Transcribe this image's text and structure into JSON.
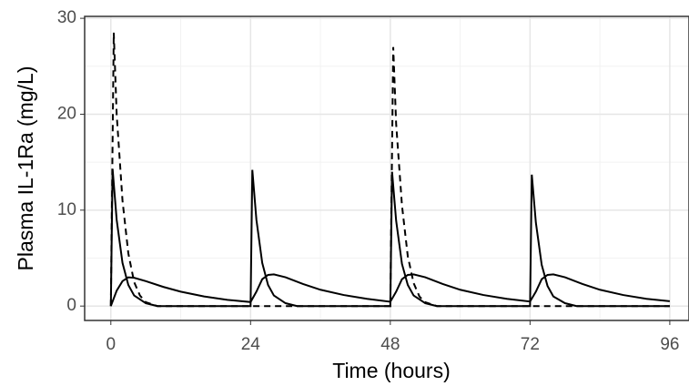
{
  "chart_data": {
    "type": "line",
    "xlabel": "Time (hours)",
    "ylabel": "Plasma IL-1Ra (mg/L)",
    "xlim": [
      -4.5,
      99.3
    ],
    "ylim": [
      -1.5,
      30.2
    ],
    "xticks": [
      0,
      24,
      48,
      72,
      96
    ],
    "yticks": [
      0,
      10,
      20,
      30
    ],
    "xminor": [
      12,
      36,
      60,
      84
    ],
    "yminor": [
      5,
      15,
      25
    ],
    "grid": true,
    "series": [
      {
        "color": "#000000",
        "dashed": false,
        "x": [
          0,
          0.3,
          1,
          2,
          3,
          4,
          6,
          8,
          24,
          24.3,
          25,
          26,
          27,
          28,
          30,
          32,
          48,
          48.3,
          49,
          50,
          51,
          52,
          54,
          56,
          72,
          72.3,
          73,
          74,
          75,
          76,
          78,
          80,
          96
        ],
        "values": [
          0,
          14.3,
          9,
          4.5,
          2.2,
          1.1,
          0.3,
          0,
          0,
          14.2,
          9,
          4.5,
          2.2,
          1.1,
          0.3,
          0,
          0,
          14,
          8.9,
          4.4,
          2.2,
          1.1,
          0.3,
          0,
          0,
          13.7,
          8.7,
          4.3,
          2.1,
          1.0,
          0.3,
          0,
          0
        ]
      },
      {
        "color": "#000000",
        "dashed": false,
        "x": [
          0,
          1,
          2,
          3,
          4,
          6,
          9,
          12,
          16,
          20,
          24,
          25,
          26,
          27,
          28,
          30,
          33,
          36,
          40,
          44,
          48,
          49,
          50,
          51,
          52,
          54,
          57,
          60,
          64,
          68,
          72,
          73,
          74,
          75,
          76,
          78,
          81,
          84,
          88,
          92,
          96
        ],
        "values": [
          0,
          1.6,
          2.6,
          3.0,
          2.95,
          2.6,
          2.0,
          1.5,
          1.0,
          0.65,
          0.42,
          1.5,
          2.8,
          3.25,
          3.3,
          3.0,
          2.3,
          1.7,
          1.15,
          0.75,
          0.45,
          1.5,
          2.8,
          3.25,
          3.3,
          3.0,
          2.3,
          1.7,
          1.15,
          0.75,
          0.47,
          1.5,
          2.8,
          3.25,
          3.3,
          3.0,
          2.3,
          1.7,
          1.15,
          0.75,
          0.5
        ]
      },
      {
        "color": "#000000",
        "dashed": true,
        "x": [
          0,
          0.5,
          1,
          2,
          3,
          4,
          5,
          6,
          8,
          48,
          48.5,
          49,
          50,
          51,
          52,
          53,
          54,
          56,
          96
        ],
        "values": [
          0,
          28.5,
          20,
          11,
          5.5,
          2.5,
          1.1,
          0.4,
          0,
          0,
          27,
          19,
          10.5,
          5.2,
          2.4,
          1.0,
          0.4,
          0,
          0
        ]
      }
    ]
  }
}
